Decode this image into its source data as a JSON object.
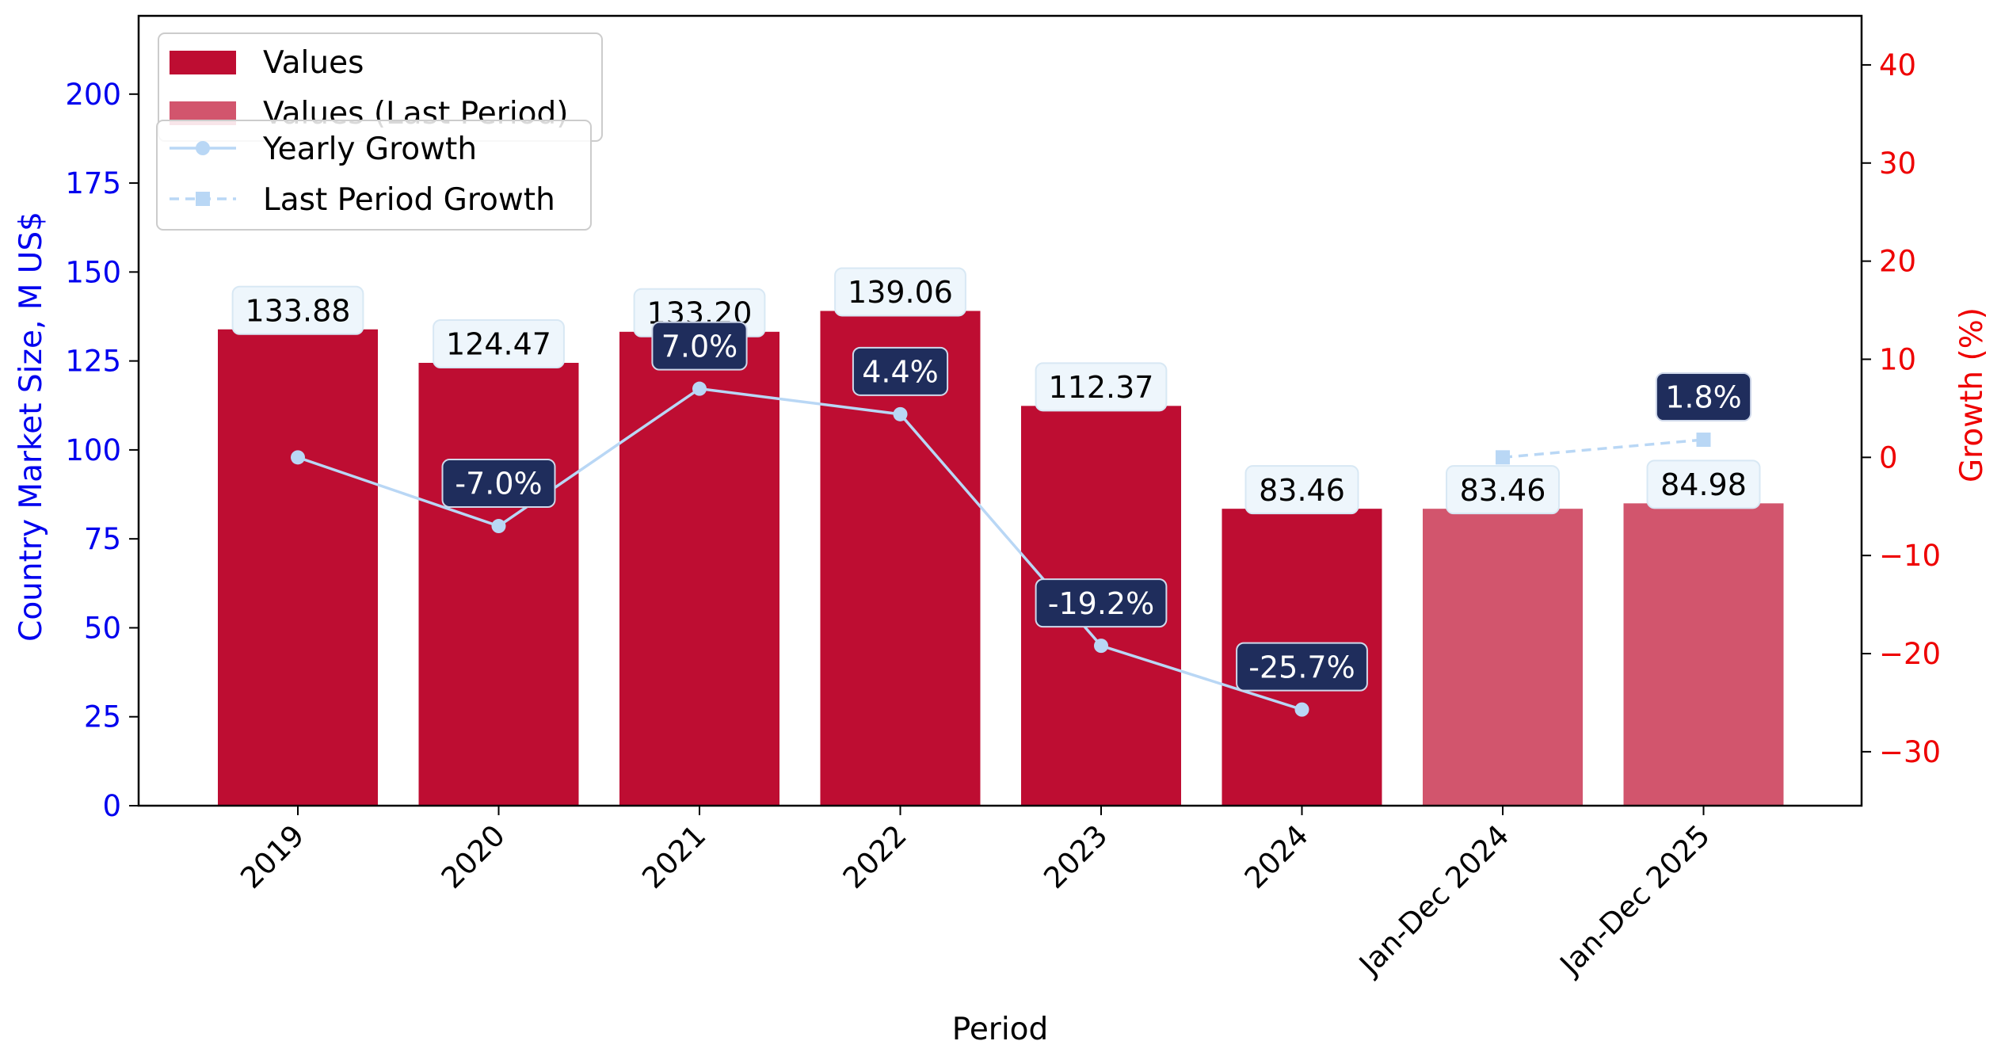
{
  "colors": {
    "values": "#be0d32",
    "values_last": "#d2556d",
    "growth_line": "#b9d7f5",
    "left_axis": "#0000ee",
    "right_axis": "#ee0000",
    "growth_label_bg": "#1f2d5c",
    "value_label_bg": "#eef6fc"
  },
  "chart_data": {
    "type": "bar",
    "categories": [
      "2019",
      "2020",
      "2021",
      "2022",
      "2023",
      "2024",
      "Jan-Dec 2024",
      "Jan-Dec 2025"
    ],
    "series": [
      {
        "name": "Values",
        "values": [
          133.88,
          124.47,
          133.2,
          139.06,
          112.37,
          83.46,
          null,
          null
        ],
        "labels": [
          "133.88",
          "124.47",
          "133.20",
          "139.06",
          "112.37",
          "83.46",
          "",
          ""
        ]
      },
      {
        "name": "Values (Last Period)",
        "values": [
          null,
          null,
          null,
          null,
          null,
          null,
          83.46,
          84.98
        ],
        "labels": [
          "",
          "",
          "",
          "",
          "",
          "",
          "83.46",
          "84.98"
        ]
      },
      {
        "name": "Yearly Growth",
        "axis": "right",
        "values": [
          0,
          -7.0,
          7.0,
          4.4,
          -19.2,
          -25.7,
          null,
          null
        ],
        "labels": [
          "",
          "-7.0%",
          "7.0%",
          "4.4%",
          "-19.2%",
          "-25.7%",
          "",
          ""
        ]
      },
      {
        "name": "Last Period Growth",
        "axis": "right",
        "values": [
          null,
          null,
          null,
          null,
          null,
          null,
          0,
          1.8
        ],
        "labels": [
          "",
          "",
          "",
          "",
          "",
          "",
          "",
          "1.8%"
        ]
      }
    ],
    "xlabel": "Period",
    "ylabel": "Country Market Size, M US$",
    "y2label": "Growth (%)",
    "ylim": [
      0,
      222
    ],
    "y2lim": [
      -35.5,
      45
    ],
    "yticks": [
      0,
      25,
      50,
      75,
      100,
      125,
      150,
      175,
      200
    ],
    "y2ticks": [
      -30,
      -20,
      -10,
      0,
      10,
      20,
      30,
      40
    ],
    "y2tick_labels": [
      "−30",
      "−20",
      "−10",
      "0",
      "10",
      "20",
      "30",
      "40"
    ],
    "grid": false,
    "legend": {
      "placement": "top-left",
      "bar_entries": [
        "Values",
        "Values (Last Period)"
      ],
      "line_entries": [
        "Yearly Growth",
        "Last Period Growth"
      ]
    }
  }
}
